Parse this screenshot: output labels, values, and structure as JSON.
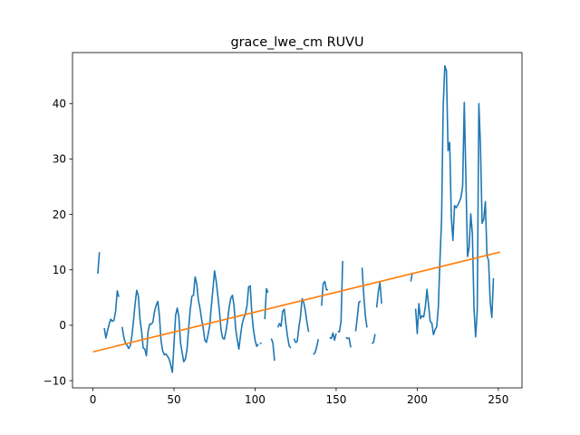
{
  "chart_data": {
    "type": "line",
    "title": "grace_lwe_cm RUVU",
    "xlabel": "",
    "ylabel": "",
    "xlim": [
      -12.6,
      264.6
    ],
    "ylim": [
      -11.3,
      49.2
    ],
    "xticks": [
      0,
      50,
      100,
      150,
      200,
      250
    ],
    "yticks": [
      -10,
      0,
      10,
      20,
      30,
      40
    ],
    "grid": false,
    "legend": "none",
    "series": [
      {
        "color": "#1f77b4",
        "segments": [
          [
            [
              3,
              9.3
            ],
            [
              4,
              13.2
            ]
          ],
          [
            [
              7,
              -0.5
            ],
            [
              8,
              -2.3
            ],
            [
              9,
              -1
            ],
            [
              10,
              0.2
            ],
            [
              11,
              1.1
            ],
            [
              12,
              0.7
            ],
            [
              13,
              0.9
            ],
            [
              14,
              2.6
            ],
            [
              15,
              6.2
            ],
            [
              16,
              5.1
            ]
          ],
          [
            [
              18,
              -0.3
            ],
            [
              19,
              -2.1
            ],
            [
              20,
              -3.2
            ],
            [
              21,
              -3.6
            ],
            [
              22,
              -4.2
            ],
            [
              23,
              -3.7
            ],
            [
              24,
              -2
            ],
            [
              25,
              0.8
            ],
            [
              26,
              3.8
            ],
            [
              27,
              6.3
            ],
            [
              28,
              5.3
            ],
            [
              29,
              1.1
            ],
            [
              30,
              -1.1
            ],
            [
              31,
              -4.1
            ],
            [
              32,
              -4.3
            ],
            [
              33,
              -5.5
            ],
            [
              34,
              -1.1
            ],
            [
              35,
              0.2
            ],
            [
              36,
              0.2
            ],
            [
              37,
              0.6
            ],
            [
              38,
              2.5
            ],
            [
              39,
              3.6
            ],
            [
              40,
              4.3
            ],
            [
              41,
              1.7
            ],
            [
              42,
              -2.8
            ],
            [
              43,
              -4.6
            ],
            [
              44,
              -5.3
            ],
            [
              45,
              -5.2
            ],
            [
              46,
              -5.6
            ],
            [
              47,
              -6.1
            ],
            [
              48,
              -7.2
            ],
            [
              49,
              -8.5
            ],
            [
              50,
              -3.3
            ],
            [
              51,
              1.8
            ],
            [
              52,
              3.1
            ],
            [
              53,
              1.5
            ],
            [
              54,
              -3.1
            ],
            [
              55,
              -4.9
            ],
            [
              56,
              -6.6
            ],
            [
              57,
              -6.1
            ],
            [
              58,
              -4.4
            ],
            [
              59,
              -0.6
            ],
            [
              60,
              2.8
            ],
            [
              61,
              5.2
            ],
            [
              62,
              5.4
            ],
            [
              63,
              8.7
            ],
            [
              64,
              7.5
            ],
            [
              65,
              4.6
            ],
            [
              66,
              3.1
            ],
            [
              67,
              1.1
            ],
            [
              68,
              -0.5
            ],
            [
              69,
              -2.7
            ],
            [
              70,
              -3.1
            ],
            [
              71,
              -1.7
            ],
            [
              72,
              -0.1
            ],
            [
              73,
              3.4
            ],
            [
              74,
              6.5
            ],
            [
              75,
              9.8
            ],
            [
              76,
              8
            ],
            [
              77,
              5.4
            ],
            [
              78,
              2.6
            ],
            [
              79,
              -0.8
            ],
            [
              80,
              -2.3
            ],
            [
              81,
              -2.5
            ],
            [
              82,
              -1.2
            ],
            [
              83,
              0.8
            ],
            [
              84,
              3.2
            ],
            [
              85,
              4.9
            ],
            [
              86,
              5.4
            ],
            [
              87,
              3.6
            ],
            [
              88,
              -0.6
            ],
            [
              89,
              -2.6
            ],
            [
              90,
              -4.3
            ],
            [
              91,
              -1.9
            ],
            [
              92,
              0.2
            ],
            [
              93,
              1.3
            ],
            [
              94,
              2
            ],
            [
              95,
              3.5
            ],
            [
              96,
              6.9
            ],
            [
              97,
              7.1
            ],
            [
              98,
              2.1
            ],
            [
              99,
              -0.8
            ],
            [
              100,
              -2.7
            ],
            [
              101,
              -3.8
            ],
            [
              102,
              -3.4
            ]
          ],
          [
            [
              103,
              -3.3
            ],
            [
              104,
              -3.2
            ]
          ],
          [
            [
              106,
              1.1
            ],
            [
              107,
              6.6
            ],
            [
              108,
              5.9
            ]
          ],
          [
            [
              110,
              -2.4
            ],
            [
              111,
              -3.2
            ],
            [
              112,
              -6.4
            ]
          ],
          [
            [
              114,
              -0.4
            ],
            [
              115,
              0.3
            ],
            [
              116,
              -0.2
            ],
            [
              117,
              2.5
            ],
            [
              118,
              2.9
            ],
            [
              119,
              0.2
            ],
            [
              120,
              -2
            ],
            [
              121,
              -3.7
            ],
            [
              122,
              -4.1
            ]
          ],
          [
            [
              124,
              -2.4
            ],
            [
              125,
              -3.1
            ],
            [
              126,
              -2.9
            ],
            [
              127,
              -0.4
            ],
            [
              128,
              1.6
            ],
            [
              129,
              4.8
            ],
            [
              130,
              4.1
            ],
            [
              131,
              2.6
            ],
            [
              132,
              0.5
            ],
            [
              133,
              -1.2
            ]
          ],
          [
            [
              136,
              -5.3
            ],
            [
              137,
              -4.9
            ],
            [
              138,
              -3.9
            ],
            [
              139,
              -2.5
            ]
          ],
          [
            [
              141,
              3.5
            ],
            [
              142,
              7.5
            ],
            [
              143,
              7.9
            ],
            [
              144,
              6.4
            ],
            [
              145,
              6.4
            ]
          ],
          [
            [
              146,
              -2.2
            ],
            [
              147,
              -2.4
            ],
            [
              148,
              -1.4
            ],
            [
              149,
              -2.7
            ],
            [
              150,
              -1.5
            ]
          ],
          [
            [
              151,
              -1.1
            ],
            [
              152,
              -1.2
            ],
            [
              153,
              0.7
            ],
            [
              154,
              11.6
            ]
          ],
          [
            [
              156,
              -2.2
            ],
            [
              157,
              -2.4
            ],
            [
              158,
              -2.3
            ],
            [
              159,
              -4
            ]
          ],
          [
            [
              162,
              -1.1
            ],
            [
              163,
              1.3
            ],
            [
              164,
              4.1
            ],
            [
              165,
              4.4
            ]
          ],
          [
            [
              166,
              10.4
            ],
            [
              167,
              5.5
            ],
            [
              168,
              1.7
            ],
            [
              169,
              -0.4
            ]
          ],
          [
            [
              172,
              -3.3
            ],
            [
              173,
              -3.1
            ],
            [
              174,
              -1.6
            ]
          ],
          [
            [
              175,
              3.2
            ],
            [
              176,
              6.1
            ],
            [
              177,
              7.7
            ],
            [
              178,
              3.9
            ]
          ],
          [
            [
              196,
              7.9
            ],
            [
              197,
              9.5
            ]
          ],
          [
            [
              199,
              3
            ],
            [
              200,
              -1.5
            ],
            [
              201,
              3.9
            ],
            [
              202,
              1.2
            ],
            [
              203,
              1.7
            ],
            [
              204,
              1.5
            ],
            [
              205,
              3.4
            ],
            [
              206,
              6.5
            ],
            [
              207,
              3.6
            ],
            [
              208,
              0.7
            ],
            [
              209,
              0.4
            ],
            [
              210,
              -1.7
            ],
            [
              211,
              -0.8
            ],
            [
              212,
              -0.3
            ],
            [
              213,
              3.2
            ],
            [
              214,
              11.7
            ],
            [
              215,
              18.9
            ],
            [
              216,
              39.5
            ],
            [
              217,
              46.8
            ],
            [
              218,
              45.9
            ],
            [
              219,
              31.5
            ],
            [
              220,
              33
            ],
            [
              221,
              19.6
            ],
            [
              222,
              15.3
            ],
            [
              223,
              21.6
            ],
            [
              224,
              21.2
            ],
            [
              225,
              21.7
            ],
            [
              226,
              22.3
            ],
            [
              227,
              23.1
            ],
            [
              228,
              25.1
            ],
            [
              229,
              40.2
            ],
            [
              230,
              26.7
            ],
            [
              231,
              12.4
            ],
            [
              232,
              14.1
            ],
            [
              233,
              20.1
            ],
            [
              234,
              16.5
            ],
            [
              235,
              3
            ],
            [
              236,
              -2.1
            ],
            [
              237,
              2.6
            ],
            [
              238,
              40
            ],
            [
              239,
              32.3
            ],
            [
              240,
              18.4
            ],
            [
              241,
              19.1
            ],
            [
              242,
              22.3
            ],
            [
              243,
              12.6
            ],
            [
              244,
              11.6
            ],
            [
              245,
              4.1
            ],
            [
              246,
              1.4
            ],
            [
              247,
              8.5
            ]
          ]
        ]
      },
      {
        "color": "#ff7f0e",
        "x": [
          0,
          251
        ],
        "values": [
          -4.8,
          13.2
        ]
      }
    ]
  }
}
